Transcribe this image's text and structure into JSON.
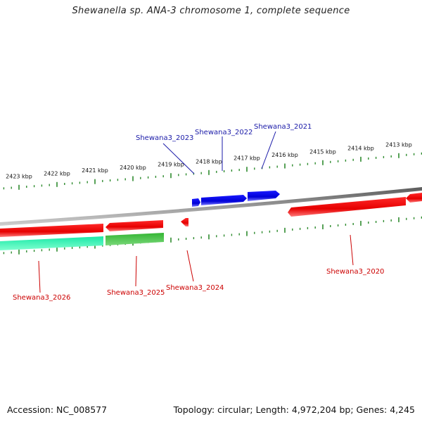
{
  "title": "Shewanella sp. ANA-3 chromosome 1, complete sequence",
  "footer": {
    "accession": "Accession: NC_008577",
    "topology": "Topology: circular; Length: 4,972,204 bp; Genes: 4,245"
  },
  "colors": {
    "backbone": "#808080",
    "tick_green": "#2e8b2e",
    "forward_gene": "#0000e6",
    "reverse_gene": "#ee0000",
    "rna_gene_cyan": "#22e3a0",
    "rna_gene_green": "#3cb83c",
    "forward_label": "#1a1aa8",
    "reverse_label": "#cc0000"
  },
  "scale": {
    "unit": "kbp",
    "labels": [
      "2423 kbp",
      "2422 kbp",
      "2421 kbp",
      "2420 kbp",
      "2419 kbp",
      "2418 kbp",
      "2417 kbp",
      "2416 kbp",
      "2415 kbp",
      "2414 kbp",
      "2413 kbp"
    ]
  },
  "genes": [
    {
      "id": "Shewana3_2023",
      "strand": "forward",
      "color": "forward_gene"
    },
    {
      "id": "Shewana3_2022",
      "strand": "forward",
      "color": "forward_gene"
    },
    {
      "id": "Shewana3_2021",
      "strand": "forward",
      "color": "forward_gene"
    },
    {
      "id": "Shewana3_2026",
      "strand": "reverse",
      "color": "reverse_gene"
    },
    {
      "id": "Shewana3_2025",
      "strand": "reverse",
      "color": "reverse_gene"
    },
    {
      "id": "Shewana3_2024",
      "strand": "reverse",
      "color": "reverse_gene"
    },
    {
      "id": "Shewana3_2020",
      "strand": "reverse",
      "color": "reverse_gene"
    }
  ]
}
